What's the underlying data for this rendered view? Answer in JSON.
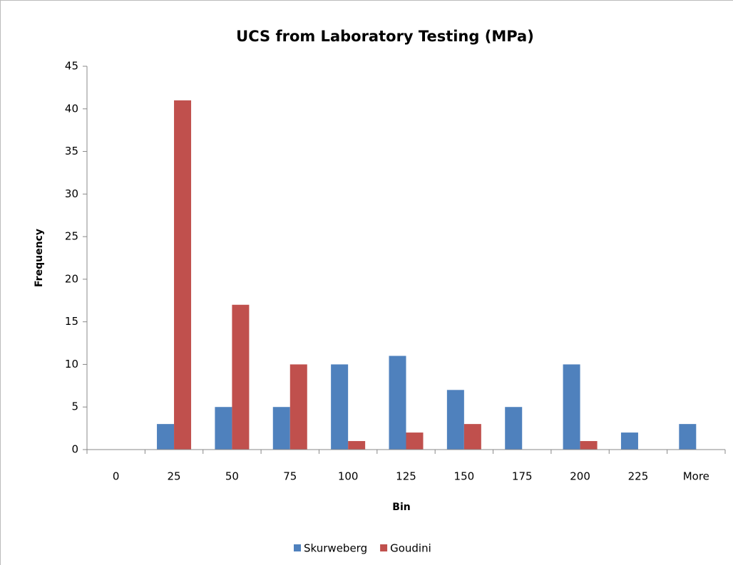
{
  "chart_data": {
    "type": "bar",
    "title": "UCS from Laboratory Testing (MPa)",
    "x_label": "Bin",
    "y_label": "Frequency",
    "categories": [
      "0",
      "25",
      "50",
      "75",
      "100",
      "125",
      "150",
      "175",
      "200",
      "225",
      "More"
    ],
    "series": [
      {
        "name": "Skurweberg",
        "color": "#4f81bd",
        "values": [
          0,
          3,
          5,
          5,
          10,
          11,
          7,
          5,
          10,
          2,
          3
        ]
      },
      {
        "name": "Goudini",
        "color": "#c0504d",
        "values": [
          0,
          41,
          17,
          10,
          1,
          2,
          3,
          0,
          1,
          0,
          0
        ]
      }
    ],
    "ylim": [
      0,
      45
    ],
    "yticks": [
      0,
      5,
      10,
      15,
      20,
      25,
      30,
      35,
      40,
      45
    ],
    "grid": false,
    "legend": "bottom"
  }
}
